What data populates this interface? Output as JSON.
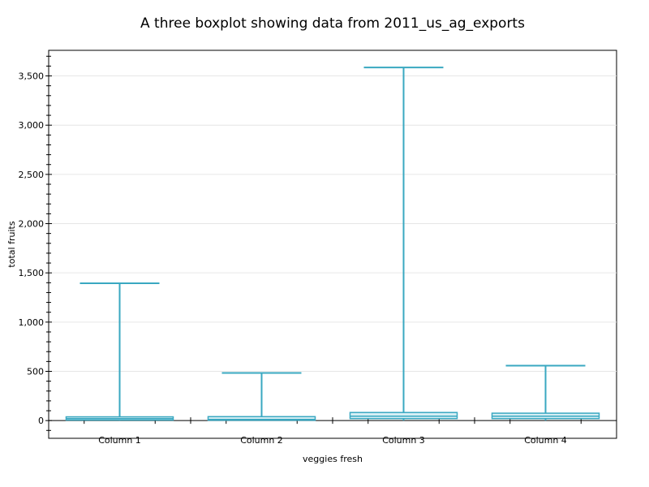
{
  "chart_data": {
    "type": "boxplot",
    "title": "A three boxplot showing data from 2011_us_ag_exports",
    "xlabel": "veggies fresh",
    "ylabel": "total fruits",
    "ylim": [
      -180,
      3760
    ],
    "y_ticks": [
      0,
      500,
      1000,
      1500,
      2000,
      2500,
      3000,
      3500
    ],
    "y_tick_labels": [
      "0",
      "500",
      "1,000",
      "1,500",
      "2,000",
      "2,500",
      "3,000",
      "3,500"
    ],
    "grid": "horizontal",
    "legend": "none",
    "color": "#3aa8c1",
    "categories": [
      "Column 1",
      "Column 2",
      "Column 3",
      "Column 4"
    ],
    "boxes": [
      {
        "label": "Column 1",
        "min": 0,
        "q1": 5,
        "median": 20,
        "q3": 38,
        "max": 1394
      },
      {
        "label": "Column 2",
        "min": 0,
        "q1": 3,
        "median": 12,
        "q3": 40,
        "max": 484
      },
      {
        "label": "Column 3",
        "min": 0,
        "q1": 20,
        "median": 45,
        "q3": 82,
        "max": 3586
      },
      {
        "label": "Column 4",
        "min": 0,
        "q1": 20,
        "median": 45,
        "q3": 75,
        "max": 558
      }
    ]
  }
}
